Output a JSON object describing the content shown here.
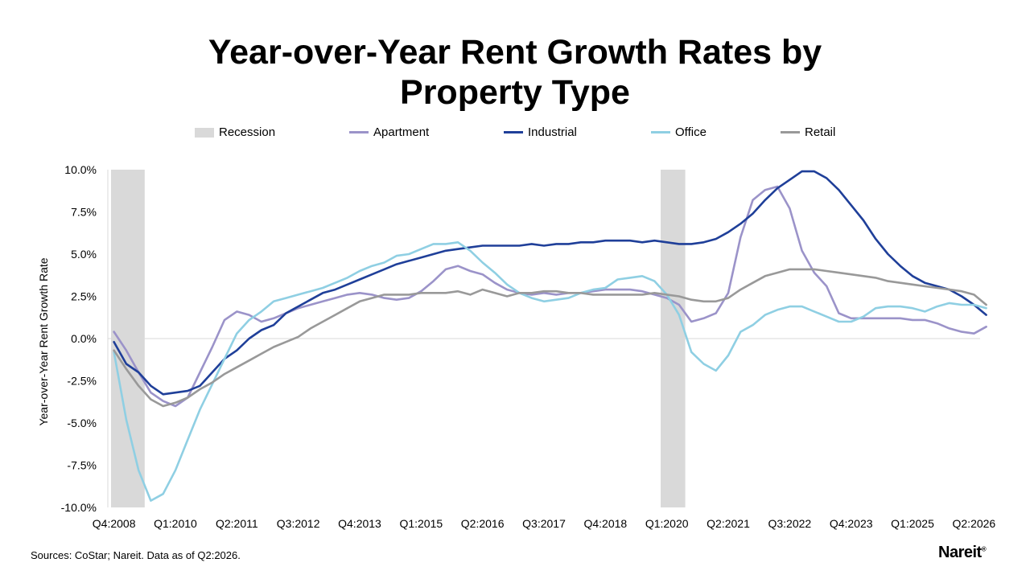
{
  "page": {
    "title_line1": "Year-over-Year Rent Growth Rates by",
    "title_line2": "Property Type",
    "source": "Sources: CoStar; Nareit. Data as of Q2:2026.",
    "logo": "Nareit",
    "logo_mark": "®"
  },
  "chart_data": {
    "type": "line",
    "title": "Year-over-Year Rent Growth Rates by Property Type",
    "ylabel": "Year-over-Year Rent Growth Rate",
    "ylim": [
      -10.0,
      10.0
    ],
    "ytick_labels": [
      "10.0%",
      "7.5%",
      "5.0%",
      "2.5%",
      "0.0%",
      "-2.5%",
      "-5.0%",
      "-7.5%",
      "-10.0%"
    ],
    "ytick_values": [
      10.0,
      7.5,
      5.0,
      2.5,
      0.0,
      -2.5,
      -5.0,
      -7.5,
      -10.0
    ],
    "x_start": "Q4:2008",
    "x_end": "Q2:2026",
    "xtick_labels": [
      "Q4:2008",
      "Q1:2010",
      "Q2:2011",
      "Q3:2012",
      "Q4:2013",
      "Q1:2015",
      "Q2:2016",
      "Q3:2017",
      "Q4:2018",
      "Q1:2020",
      "Q2:2021",
      "Q3:2022",
      "Q4:2023",
      "Q1:2025",
      "Q2:2026"
    ],
    "legend_position": "top",
    "recessions": [
      {
        "start": "Q4:2008",
        "end": "Q2:2009"
      },
      {
        "start": "Q1:2020",
        "end": "Q2:2020"
      }
    ],
    "recession_label": "Recession",
    "recession_color": "#d9d9d9",
    "series": [
      {
        "name": "Apartment",
        "color": "#9b93c9",
        "values": [
          0.4,
          -0.7,
          -2.0,
          -3.2,
          -3.7,
          -4.0,
          -3.5,
          -2.0,
          -0.5,
          1.1,
          1.6,
          1.4,
          1.0,
          1.2,
          1.5,
          1.8,
          2.0,
          2.2,
          2.4,
          2.6,
          2.7,
          2.6,
          2.4,
          2.3,
          2.4,
          2.8,
          3.4,
          4.1,
          4.3,
          4.0,
          3.8,
          3.3,
          2.9,
          2.7,
          2.6,
          2.7,
          2.6,
          2.7,
          2.7,
          2.8,
          2.9,
          2.9,
          2.9,
          2.8,
          2.6,
          2.4,
          2.0,
          1.0,
          1.2,
          1.5,
          2.7,
          6.0,
          8.2,
          8.8,
          9.0,
          7.7,
          5.2,
          3.9,
          3.1,
          1.5,
          1.2,
          1.2,
          1.2,
          1.2,
          1.2,
          1.1,
          1.1,
          0.9,
          0.6,
          0.4,
          0.3,
          0.7
        ]
      },
      {
        "name": "Industrial",
        "color": "#1f3f99",
        "values": [
          -0.2,
          -1.5,
          -2.0,
          -2.8,
          -3.3,
          -3.2,
          -3.1,
          -2.8,
          -2.0,
          -1.2,
          -0.7,
          0.0,
          0.5,
          0.8,
          1.5,
          1.9,
          2.3,
          2.7,
          2.9,
          3.2,
          3.5,
          3.8,
          4.1,
          4.4,
          4.6,
          4.8,
          5.0,
          5.2,
          5.3,
          5.4,
          5.5,
          5.5,
          5.5,
          5.5,
          5.6,
          5.5,
          5.6,
          5.6,
          5.7,
          5.7,
          5.8,
          5.8,
          5.8,
          5.7,
          5.8,
          5.7,
          5.6,
          5.6,
          5.7,
          5.9,
          6.3,
          6.8,
          7.4,
          8.2,
          8.9,
          9.4,
          9.9,
          9.9,
          9.5,
          8.8,
          7.9,
          7.0,
          5.9,
          5.0,
          4.3,
          3.7,
          3.3,
          3.1,
          2.9,
          2.5,
          2.0,
          1.4
        ]
      },
      {
        "name": "Office",
        "color": "#8fcfe3",
        "values": [
          -0.8,
          -4.8,
          -7.8,
          -9.6,
          -9.2,
          -7.8,
          -6.0,
          -4.2,
          -2.7,
          -1.2,
          0.3,
          1.1,
          1.6,
          2.2,
          2.4,
          2.6,
          2.8,
          3.0,
          3.3,
          3.6,
          4.0,
          4.3,
          4.5,
          4.9,
          5.0,
          5.3,
          5.6,
          5.6,
          5.7,
          5.2,
          4.5,
          3.9,
          3.2,
          2.7,
          2.4,
          2.2,
          2.3,
          2.4,
          2.7,
          2.9,
          3.0,
          3.5,
          3.6,
          3.7,
          3.4,
          2.6,
          1.4,
          -0.8,
          -1.5,
          -1.9,
          -1.0,
          0.4,
          0.8,
          1.4,
          1.7,
          1.9,
          1.9,
          1.6,
          1.3,
          1.0,
          1.0,
          1.3,
          1.8,
          1.9,
          1.9,
          1.8,
          1.6,
          1.9,
          2.1,
          2.0,
          2.0,
          1.8
        ]
      },
      {
        "name": "Retail",
        "color": "#999999",
        "values": [
          -0.7,
          -1.8,
          -2.8,
          -3.6,
          -4.0,
          -3.8,
          -3.5,
          -3.0,
          -2.6,
          -2.1,
          -1.7,
          -1.3,
          -0.9,
          -0.5,
          -0.2,
          0.1,
          0.6,
          1.0,
          1.4,
          1.8,
          2.2,
          2.4,
          2.6,
          2.6,
          2.6,
          2.7,
          2.7,
          2.7,
          2.8,
          2.6,
          2.9,
          2.7,
          2.5,
          2.7,
          2.7,
          2.8,
          2.8,
          2.7,
          2.7,
          2.6,
          2.6,
          2.6,
          2.6,
          2.6,
          2.7,
          2.6,
          2.5,
          2.3,
          2.2,
          2.2,
          2.4,
          2.9,
          3.3,
          3.7,
          3.9,
          4.1,
          4.1,
          4.1,
          4.0,
          3.9,
          3.8,
          3.7,
          3.6,
          3.4,
          3.3,
          3.2,
          3.1,
          3.0,
          2.9,
          2.8,
          2.6,
          2.0
        ]
      }
    ]
  }
}
